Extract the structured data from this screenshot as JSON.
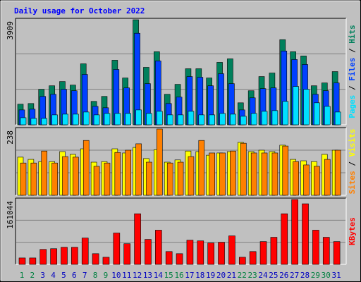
{
  "chart_data": {
    "type": "bar",
    "title": "Daily usage for October 2022",
    "title_color": "#0000ff",
    "categories": [
      "1",
      "2",
      "3",
      "4",
      "5",
      "6",
      "7",
      "8",
      "9",
      "10",
      "11",
      "12",
      "13",
      "14",
      "15",
      "16",
      "17",
      "18",
      "19",
      "20",
      "21",
      "22",
      "23",
      "24",
      "25",
      "26",
      "27",
      "28",
      "29",
      "30",
      "31"
    ],
    "category_colors": [
      "#008040",
      "#008040",
      "#0000c0",
      "#0000c0",
      "#0000c0",
      "#0000c0",
      "#0000c0",
      "#008040",
      "#008040",
      "#0000c0",
      "#0000c0",
      "#0000c0",
      "#0000c0",
      "#0000c0",
      "#008040",
      "#008040",
      "#0000c0",
      "#0000c0",
      "#0000c0",
      "#0000c0",
      "#0000c0",
      "#008040",
      "#008040",
      "#0000c0",
      "#0000c0",
      "#0000c0",
      "#0000c0",
      "#0000c0",
      "#008040",
      "#008040",
      "#0000c0"
    ],
    "legend_separator": " / ",
    "grid": true,
    "grid_divisions": 3,
    "panels": [
      {
        "ylim": [
          0,
          3909
        ],
        "yticks": [
          3909
        ],
        "series": [
          {
            "name": "Hits",
            "color": "#00805c",
            "values": [
              766,
              792,
              1320,
              1452,
              1610,
              1478,
              2270,
              871,
              1056,
              2402,
              1742,
              3909,
              2138,
              2719,
              1135,
              1505,
              2086,
              2086,
              1742,
              2323,
              2455,
              818,
              1267,
              1795,
              1927,
              3168,
              2719,
              2561,
              1452,
              1558,
              1980
            ]
          },
          {
            "name": "Files",
            "color": "#0040ff",
            "values": [
              554,
              581,
              1056,
              1135,
              1320,
              1267,
              1874,
              686,
              634,
              2059,
              1373,
              3405,
              1531,
              2376,
              792,
              1030,
              1795,
              1769,
              1452,
              1901,
              1531,
              554,
              1003,
              1346,
              1373,
              2746,
              2429,
              2244,
              1135,
              1267,
              1558
            ]
          },
          {
            "name": "Pages",
            "color": "#00e0ff",
            "values": [
              264,
              238,
              238,
              370,
              396,
              396,
              475,
              370,
              422,
              422,
              422,
              554,
              422,
              502,
              370,
              370,
              502,
              370,
              370,
              422,
              396,
              317,
              422,
              502,
              528,
              871,
              1426,
              1320,
              818,
              686,
              475
            ]
          }
        ]
      },
      {
        "ylim": [
          0,
          238
        ],
        "yticks": [
          238
        ],
        "series": [
          {
            "name": "Visits",
            "color": "#ffff00",
            "values": [
              137,
              129,
              121,
              121,
              157,
              147,
              167,
              119,
              121,
              167,
              152,
              172,
              132,
              164,
              119,
              127,
              159,
              157,
              144,
              152,
              157,
              190,
              157,
              162,
              157,
              180,
              129,
              124,
              121,
              147,
              162
            ]
          },
          {
            "name": "Sites",
            "color": "#ff8000",
            "values": [
              116,
              116,
              159,
              116,
              139,
              137,
              197,
              104,
              116,
              154,
              162,
              185,
              119,
              238,
              116,
              119,
              139,
              197,
              152,
              152,
              159,
              187,
              152,
              152,
              152,
              177,
              121,
              109,
              104,
              129,
              162
            ]
          }
        ]
      },
      {
        "ylim": [
          0,
          161044
        ],
        "yticks": [
          161044
        ],
        "series": [
          {
            "name": "KBytes",
            "color": "#ff0000",
            "values": [
              15930,
              15930,
              37170,
              38940,
              42480,
              42480,
              65490,
              26550,
              17700,
              77880,
              51330,
              125670,
              61950,
              84960,
              31860,
              26550,
              60180,
              58410,
              53100,
              54870,
              70800,
              17700,
              31860,
              56640,
              67260,
              125670,
              161044,
              150450,
              84960,
              67260,
              56640
            ]
          }
        ]
      }
    ]
  }
}
